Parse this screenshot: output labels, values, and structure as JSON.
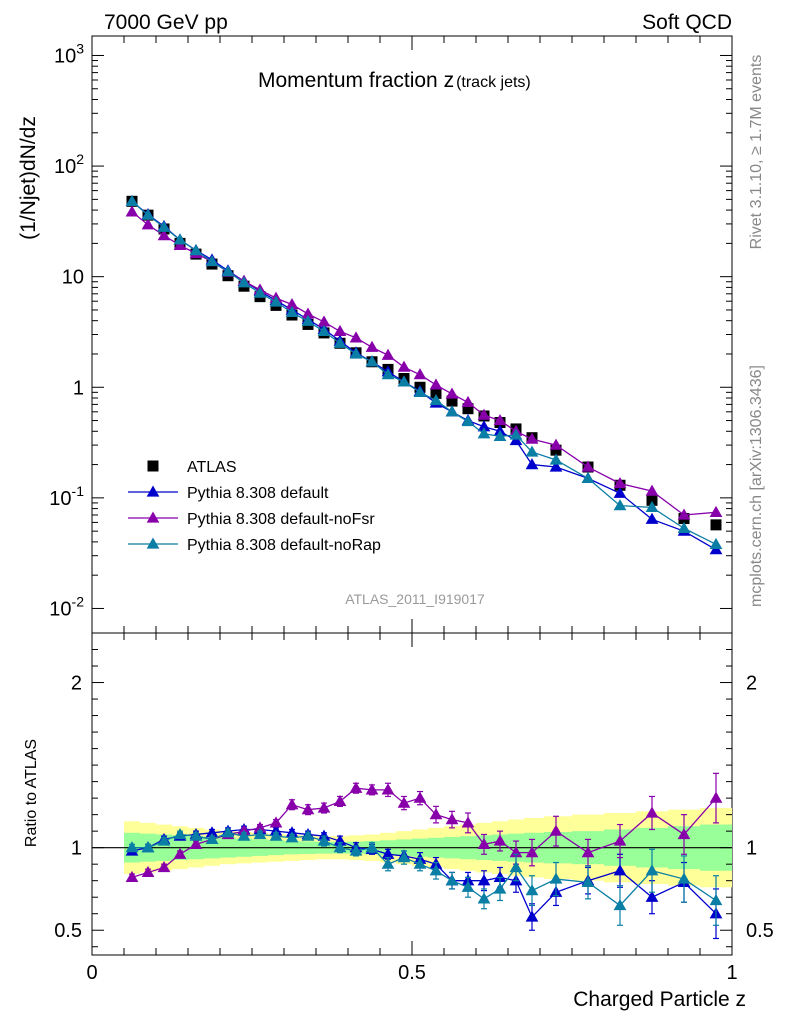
{
  "header": {
    "left": "7000 GeV pp",
    "right": "Soft QCD"
  },
  "side_labels": {
    "rivet": "Rivet 3.1.10, ≥ 1.7M events",
    "mcplots": "mcplots.cern.ch [arXiv:1306.3436]"
  },
  "colors": {
    "atlas": "#000000",
    "default": "#0000cc",
    "noFsr": "#8800aa",
    "noRap": "#0a7ea4",
    "band_inner": "#99ff99",
    "band_outer": "#ffff99"
  },
  "chart_data": [
    {
      "type": "scatter",
      "title_main": "Momentum fraction z",
      "title_sub": "(track jets)",
      "ylabel": "(1/Njet)dN/dz",
      "watermark": "ATLAS_2011_I919017",
      "yscale": "log",
      "xlim": [
        0,
        1
      ],
      "ylim": [
        0.006,
        1500
      ],
      "y_tick_labels": [
        "10^-2",
        "10^-1",
        "1",
        "10",
        "10^2",
        "10^3"
      ],
      "legend_position": "lower-left",
      "x": [
        0.0625,
        0.0875,
        0.1125,
        0.1375,
        0.1625,
        0.1875,
        0.2125,
        0.2375,
        0.2625,
        0.2875,
        0.3125,
        0.3375,
        0.3625,
        0.3875,
        0.4125,
        0.4375,
        0.4625,
        0.4875,
        0.5125,
        0.5375,
        0.5625,
        0.5875,
        0.6125,
        0.6375,
        0.6625,
        0.6875,
        0.725,
        0.775,
        0.825,
        0.875,
        0.925,
        0.975
      ],
      "series": [
        {
          "name": "ATLAS",
          "marker": "square",
          "values": [
            48,
            36,
            27,
            20,
            16,
            13,
            10.2,
            8.2,
            6.6,
            5.5,
            4.5,
            3.7,
            3.1,
            2.5,
            2.05,
            1.7,
            1.45,
            1.2,
            1.0,
            0.88,
            0.75,
            0.64,
            0.55,
            0.48,
            0.42,
            0.35,
            0.27,
            0.19,
            0.13,
            0.095,
            0.065,
            0.057
          ]
        },
        {
          "name": "Pythia 8.308 default",
          "marker": "triangle",
          "values": [
            48,
            36.5,
            28.5,
            21.5,
            17.3,
            14.2,
            11.3,
            9.1,
            7.4,
            6.1,
            5.0,
            4.1,
            3.35,
            2.62,
            2.05,
            1.7,
            1.38,
            1.12,
            0.92,
            0.72,
            0.6,
            0.5,
            0.44,
            0.4,
            0.33,
            0.2,
            0.19,
            0.15,
            0.11,
            0.064,
            0.05,
            0.034
          ]
        },
        {
          "name": "Pythia 8.308 default-noFsr",
          "marker": "triangle",
          "values": [
            38.5,
            29.5,
            23.5,
            19.2,
            16.2,
            13.7,
            11.0,
            9.1,
            7.6,
            6.4,
            5.6,
            4.6,
            3.9,
            3.2,
            2.8,
            2.3,
            1.95,
            1.52,
            1.3,
            1.05,
            0.87,
            0.73,
            0.56,
            0.5,
            0.4,
            0.34,
            0.3,
            0.19,
            0.135,
            0.115,
            0.07,
            0.074
          ]
        },
        {
          "name": "Pythia 8.308 default-noRap",
          "marker": "triangle",
          "values": [
            48,
            36,
            28,
            21.5,
            17.2,
            13.7,
            11.1,
            8.8,
            7.1,
            5.9,
            4.75,
            3.95,
            3.2,
            2.5,
            2.0,
            1.7,
            1.3,
            1.12,
            0.9,
            0.76,
            0.6,
            0.49,
            0.38,
            0.36,
            0.37,
            0.26,
            0.22,
            0.15,
            0.085,
            0.082,
            0.053,
            0.038
          ]
        }
      ]
    },
    {
      "type": "scatter",
      "ylabel": "Ratio to ATLAS",
      "xlabel": "Charged Particle z",
      "xlim": [
        0,
        1
      ],
      "ylim": [
        0.35,
        2.3
      ],
      "y_tick_labels": [
        "0.5",
        "1",
        "2"
      ],
      "x_tick_labels": [
        "0",
        "0.5",
        "1"
      ],
      "band_inner_halfwidth": [
        0.09,
        0.085,
        0.08,
        0.075,
        0.07,
        0.065,
        0.06,
        0.055,
        0.05,
        0.045,
        0.04,
        0.038,
        0.036,
        0.035,
        0.036,
        0.04,
        0.045,
        0.05,
        0.055,
        0.06,
        0.065,
        0.07,
        0.075,
        0.08,
        0.085,
        0.09,
        0.095,
        0.1,
        0.11,
        0.12,
        0.13,
        0.14
      ],
      "band_outer_halfwidth": [
        0.16,
        0.15,
        0.14,
        0.13,
        0.12,
        0.11,
        0.1,
        0.095,
        0.09,
        0.085,
        0.08,
        0.075,
        0.07,
        0.07,
        0.075,
        0.08,
        0.09,
        0.1,
        0.11,
        0.12,
        0.13,
        0.14,
        0.15,
        0.16,
        0.17,
        0.18,
        0.19,
        0.2,
        0.21,
        0.22,
        0.23,
        0.24
      ],
      "series": [
        {
          "name": "Pythia 8.308 default",
          "values": [
            0.98,
            1.0,
            1.05,
            1.07,
            1.08,
            1.09,
            1.1,
            1.11,
            1.11,
            1.1,
            1.09,
            1.08,
            1.07,
            1.04,
            1.0,
            0.99,
            0.96,
            0.95,
            0.93,
            0.9,
            0.8,
            0.8,
            0.8,
            0.82,
            0.8,
            0.58,
            0.73,
            0.8,
            0.86,
            0.7,
            0.79,
            0.6
          ],
          "errors": [
            0.02,
            0.02,
            0.02,
            0.02,
            0.02,
            0.02,
            0.02,
            0.02,
            0.02,
            0.02,
            0.02,
            0.02,
            0.02,
            0.03,
            0.03,
            0.03,
            0.03,
            0.03,
            0.04,
            0.04,
            0.05,
            0.05,
            0.06,
            0.06,
            0.07,
            0.08,
            0.08,
            0.08,
            0.1,
            0.1,
            0.12,
            0.15
          ]
        },
        {
          "name": "Pythia 8.308 default-noFsr",
          "values": [
            0.82,
            0.85,
            0.88,
            0.96,
            1.02,
            1.05,
            1.08,
            1.1,
            1.12,
            1.15,
            1.26,
            1.23,
            1.24,
            1.28,
            1.36,
            1.35,
            1.35,
            1.27,
            1.3,
            1.2,
            1.17,
            1.15,
            1.02,
            1.04,
            0.97,
            0.97,
            1.1,
            0.97,
            1.04,
            1.21,
            1.08,
            1.3
          ],
          "errors": [
            0.02,
            0.02,
            0.02,
            0.02,
            0.02,
            0.02,
            0.02,
            0.02,
            0.02,
            0.02,
            0.03,
            0.03,
            0.03,
            0.03,
            0.03,
            0.03,
            0.04,
            0.04,
            0.04,
            0.05,
            0.05,
            0.06,
            0.06,
            0.06,
            0.07,
            0.08,
            0.09,
            0.08,
            0.1,
            0.1,
            0.12,
            0.15
          ]
        },
        {
          "name": "Pythia 8.308 default-noRap",
          "values": [
            1.0,
            1.0,
            1.04,
            1.08,
            1.07,
            1.05,
            1.09,
            1.07,
            1.08,
            1.07,
            1.06,
            1.07,
            1.04,
            1.0,
            0.98,
            1.0,
            0.9,
            0.94,
            0.9,
            0.86,
            0.8,
            0.76,
            0.69,
            0.75,
            0.88,
            0.74,
            0.81,
            0.79,
            0.65,
            0.86,
            0.81,
            0.68
          ],
          "errors": [
            0.02,
            0.02,
            0.02,
            0.02,
            0.02,
            0.02,
            0.02,
            0.02,
            0.02,
            0.02,
            0.02,
            0.02,
            0.03,
            0.03,
            0.03,
            0.03,
            0.04,
            0.04,
            0.04,
            0.05,
            0.05,
            0.06,
            0.06,
            0.07,
            0.08,
            0.09,
            0.1,
            0.1,
            0.12,
            0.13,
            0.14,
            0.15
          ]
        }
      ]
    }
  ]
}
